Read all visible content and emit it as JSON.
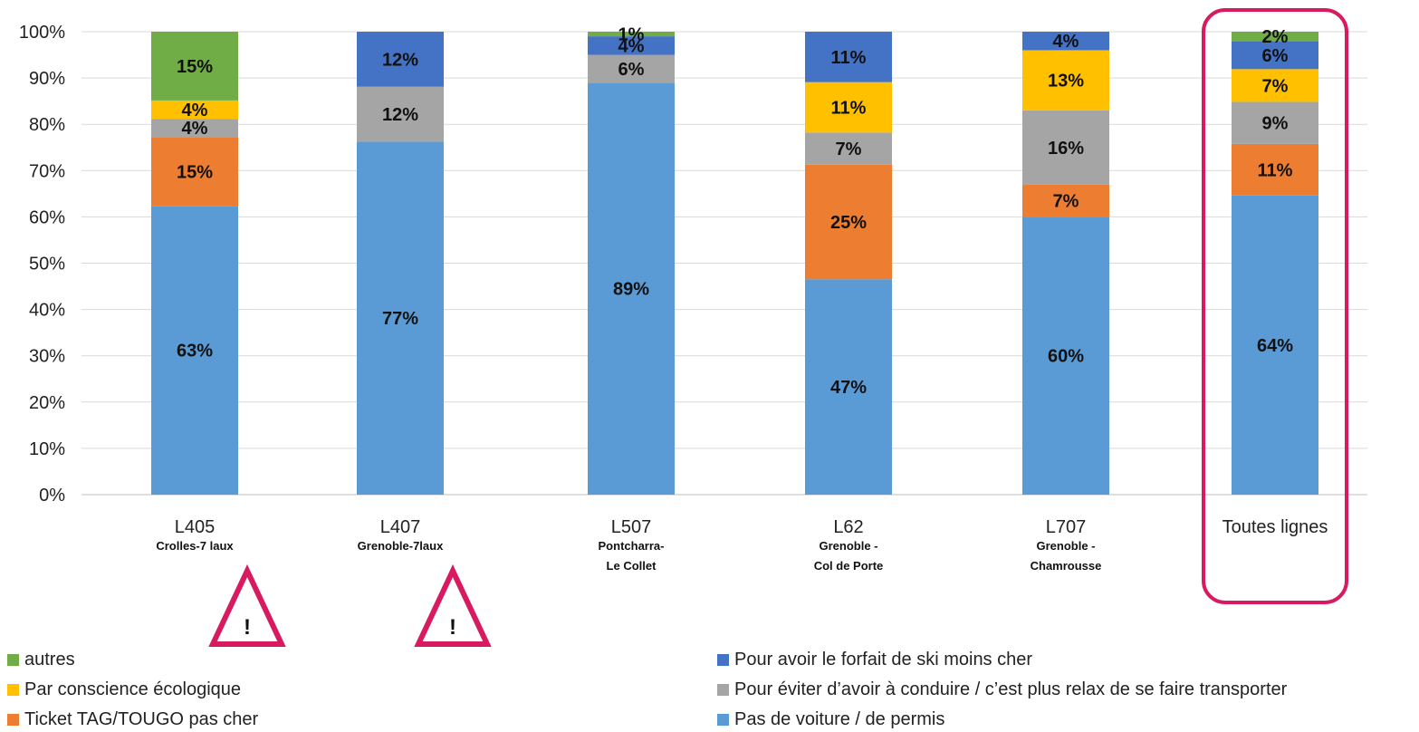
{
  "chart_data": {
    "type": "bar",
    "stacked": true,
    "percent_stacked": true,
    "categories": [
      {
        "code": "L405",
        "sub": [
          "Crolles-7 laux"
        ]
      },
      {
        "code": "L407",
        "sub": [
          "Grenoble-7laux"
        ]
      },
      {
        "code": "L507",
        "sub": [
          "Pontcharra-",
          "Le Collet"
        ]
      },
      {
        "code": "L62",
        "sub": [
          "Grenoble -",
          "Col de Porte"
        ]
      },
      {
        "code": "L707",
        "sub": [
          "Grenoble -",
          "Chamrousse"
        ]
      },
      {
        "code": "Toutes lignes",
        "sub": []
      }
    ],
    "series": [
      {
        "name": "Pas de voiture / de permis",
        "color": "#5B9BD5",
        "values": [
          63,
          77,
          89,
          47,
          60,
          64
        ],
        "labels": [
          "63%",
          "77%",
          "89%",
          "47%",
          "60%",
          "64%"
        ]
      },
      {
        "name": "Ticket TAG/TOUGO pas cher",
        "color": "#ED7D31",
        "values": [
          15,
          0,
          0,
          25,
          7,
          11
        ],
        "labels": [
          "15%",
          "",
          "",
          "25%",
          "7%",
          "11%"
        ]
      },
      {
        "name": "Pour éviter d’avoir à conduire / c’est plus relax de se faire transporter",
        "color": "#A5A5A5",
        "values": [
          4,
          12,
          6,
          7,
          16,
          9
        ],
        "labels": [
          "4%",
          "12%",
          "6%",
          "7%",
          "16%",
          "9%"
        ]
      },
      {
        "name": "Par conscience écologique",
        "color": "#FFC000",
        "values": [
          4,
          0,
          0,
          11,
          13,
          7
        ],
        "labels": [
          "4%",
          "",
          "",
          "11%",
          "13%",
          "7%"
        ]
      },
      {
        "name": "Pour avoir le forfait de ski moins cher",
        "color": "#4472C4",
        "values": [
          0,
          12,
          4,
          11,
          4,
          6
        ],
        "labels": [
          "",
          "12%",
          "4%",
          "11%",
          "4%",
          "6%"
        ]
      },
      {
        "name": "autres",
        "color": "#70AD47",
        "values": [
          15,
          0,
          1,
          0,
          0,
          2
        ],
        "labels": [
          "15%",
          "",
          "1%",
          "",
          "",
          "2%"
        ]
      }
    ],
    "y_ticks": [
      "0%",
      "10%",
      "20%",
      "30%",
      "40%",
      "50%",
      "60%",
      "70%",
      "80%",
      "90%",
      "100%"
    ],
    "ylim": [
      0,
      100
    ],
    "grid": true,
    "legend_position": "bottom",
    "highlighted_category": "Toutes lignes",
    "highlight_color": "#D81B60",
    "warning_categories": [
      "L405",
      "L407"
    ],
    "warning_symbol": "!",
    "warning_color": "#D81B60"
  }
}
